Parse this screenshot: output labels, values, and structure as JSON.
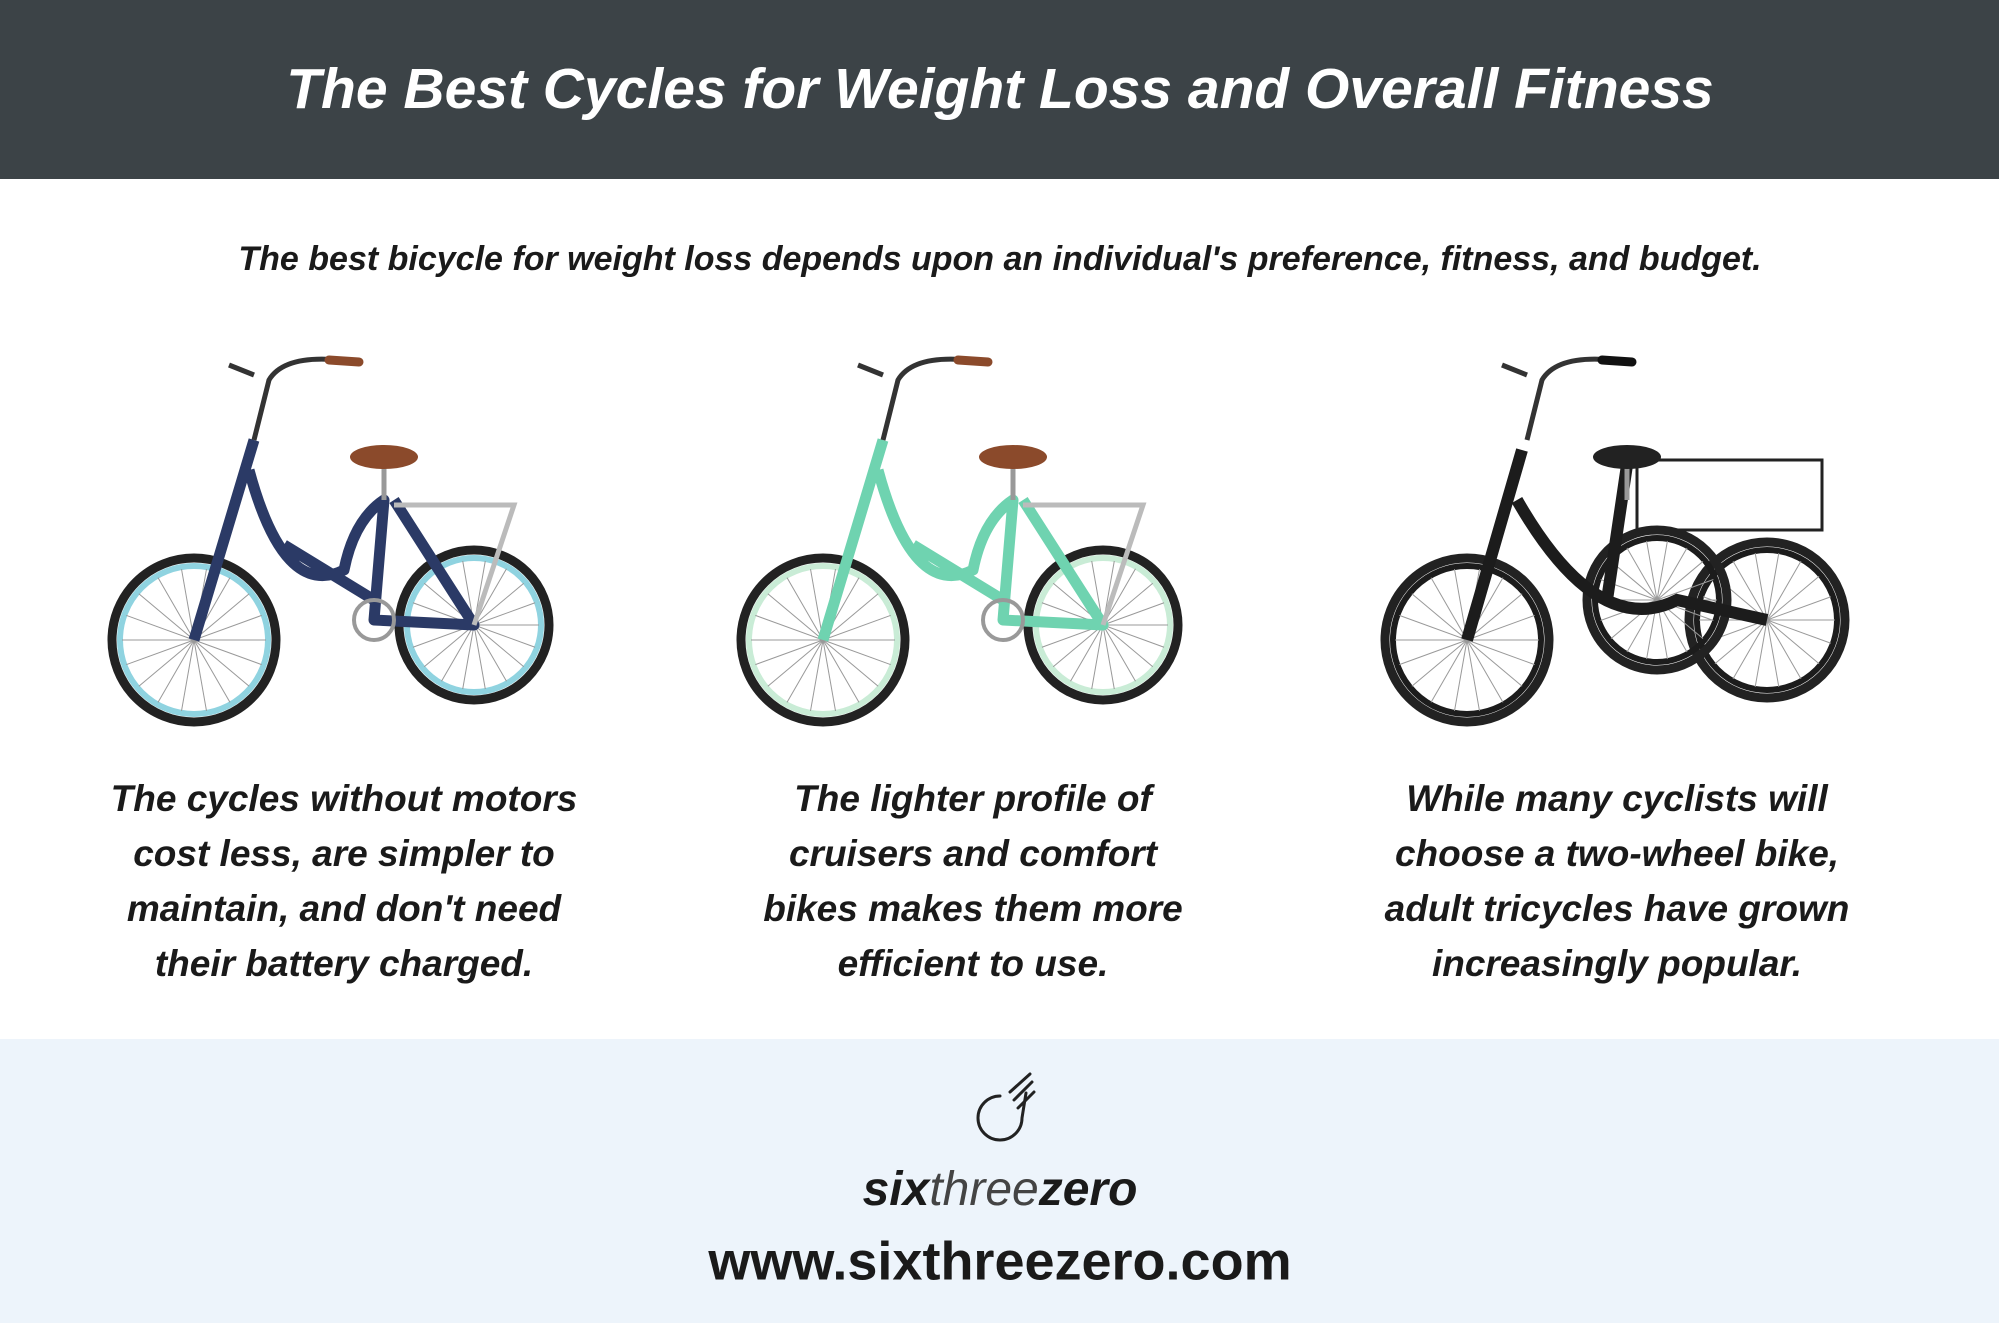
{
  "header": {
    "title": "The Best Cycles for Weight Loss and Overall Fitness"
  },
  "subtitle": "The best bicycle for weight loss depends upon an individual's preference, fitness, and budget.",
  "columns": [
    {
      "caption": [
        "The cycles without motors",
        "cost less, are simpler to",
        "maintain, and don't need",
        "their battery charged."
      ]
    },
    {
      "caption": [
        "The lighter profile of",
        "cruisers and comfort",
        "bikes makes them more",
        "efficient to use."
      ]
    },
    {
      "caption": [
        "While many cyclists will",
        "choose a two-wheel bike,",
        "adult tricycles have grown",
        "increasingly popular."
      ]
    }
  ],
  "footer": {
    "logo": [
      "six",
      "three",
      "zero"
    ],
    "url": "www.sixthreezero.com"
  }
}
